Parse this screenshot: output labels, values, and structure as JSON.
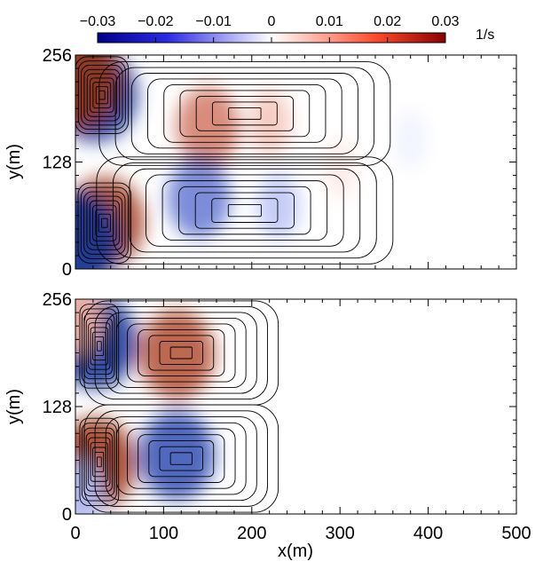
{
  "chart_data": {
    "type": "heatmap",
    "colorbar": {
      "ticks": [
        "−0.03",
        "−0.02",
        "−0.01",
        "0",
        "0.01",
        "0.02",
        "0.03"
      ],
      "tick_values": [
        -0.03,
        -0.02,
        -0.01,
        0,
        0.01,
        0.02,
        0.03
      ],
      "range": [
        -0.03,
        0.03
      ],
      "unit": "1/s",
      "colors": [
        "#00008b",
        "#2a2ae6",
        "#ffffff",
        "#ff4a2a",
        "#8b0000"
      ]
    },
    "panels": [
      {
        "ylabel": "y(m)",
        "xlabel": "",
        "xlim": [
          0,
          500
        ],
        "ylim": [
          0,
          256
        ],
        "yticks": [
          "0",
          "128",
          "256"
        ],
        "ytick_values": [
          0,
          128,
          256
        ],
        "cells": [
          {
            "x": 22,
            "y": 208,
            "v": -0.028
          },
          {
            "x": 33,
            "y": 56,
            "v": 0.026
          },
          {
            "x": 2,
            "y": 225,
            "v": 0.03
          },
          {
            "x": 2,
            "y": 35,
            "v": -0.03
          },
          {
            "x": 150,
            "y": 170,
            "v": 0.018
          },
          {
            "x": 220,
            "y": 175,
            "v": 0.008
          },
          {
            "x": 140,
            "y": 85,
            "v": -0.018
          },
          {
            "x": 230,
            "y": 75,
            "v": -0.008
          },
          {
            "x": 300,
            "y": 120,
            "v": 0.003
          },
          {
            "x": 380,
            "y": 155,
            "v": -0.002
          }
        ],
        "contours": [
          {
            "cx": 30,
            "cy": 208,
            "a": 30,
            "b": 46
          },
          {
            "cx": 33,
            "cy": 55,
            "a": 30,
            "b": 48
          },
          {
            "cx": 192,
            "cy": 186,
            "a": 165,
            "b": 62
          },
          {
            "cx": 192,
            "cy": 70,
            "a": 168,
            "b": 64
          }
        ]
      },
      {
        "ylabel": "y(m)",
        "xlabel": "x(m)",
        "xlim": [
          0,
          500
        ],
        "ylim": [
          0,
          256
        ],
        "yticks": [
          "0",
          "128",
          "256"
        ],
        "ytick_values": [
          0,
          128,
          256
        ],
        "xticks": [
          "0",
          "100",
          "200",
          "300",
          "400",
          "500"
        ],
        "xtick_values": [
          0,
          100,
          200,
          300,
          400,
          500
        ],
        "cells": [
          {
            "x": 22,
            "y": 205,
            "v": -0.028
          },
          {
            "x": 22,
            "y": 60,
            "v": 0.027
          },
          {
            "x": 2,
            "y": 232,
            "v": 0.012
          },
          {
            "x": 5,
            "y": 25,
            "v": -0.01
          },
          {
            "x": 115,
            "y": 190,
            "v": 0.024
          },
          {
            "x": 115,
            "y": 70,
            "v": -0.024
          }
        ],
        "contours": [
          {
            "cx": 27,
            "cy": 200,
            "a": 22,
            "b": 50
          },
          {
            "cx": 27,
            "cy": 62,
            "a": 22,
            "b": 52
          },
          {
            "cx": 120,
            "cy": 192,
            "a": 110,
            "b": 62
          },
          {
            "cx": 120,
            "cy": 66,
            "a": 110,
            "b": 64
          }
        ]
      }
    ]
  }
}
